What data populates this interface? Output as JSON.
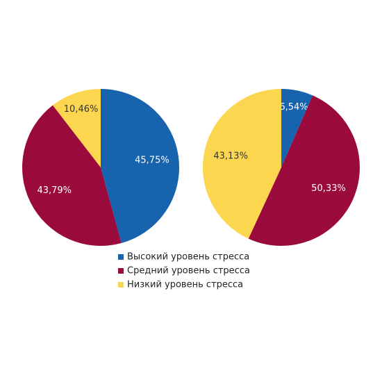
{
  "chart_data": [
    {
      "type": "pie",
      "categories": [
        "Высокий уровень стресса",
        "Средний уровень стресса",
        "Низкий уровень стресса"
      ],
      "colors": [
        "#1763ae",
        "#9b0a3c",
        "#fdd64f"
      ],
      "values": [
        45.75,
        43.79,
        10.46
      ],
      "value_labels": [
        "45,75%",
        "43,79%",
        "10,46%"
      ]
    },
    {
      "type": "pie",
      "values": [
        6.54,
        50.33,
        43.13
      ],
      "value_labels": [
        "6,54%",
        "50,33%",
        "43,13%"
      ]
    }
  ]
}
